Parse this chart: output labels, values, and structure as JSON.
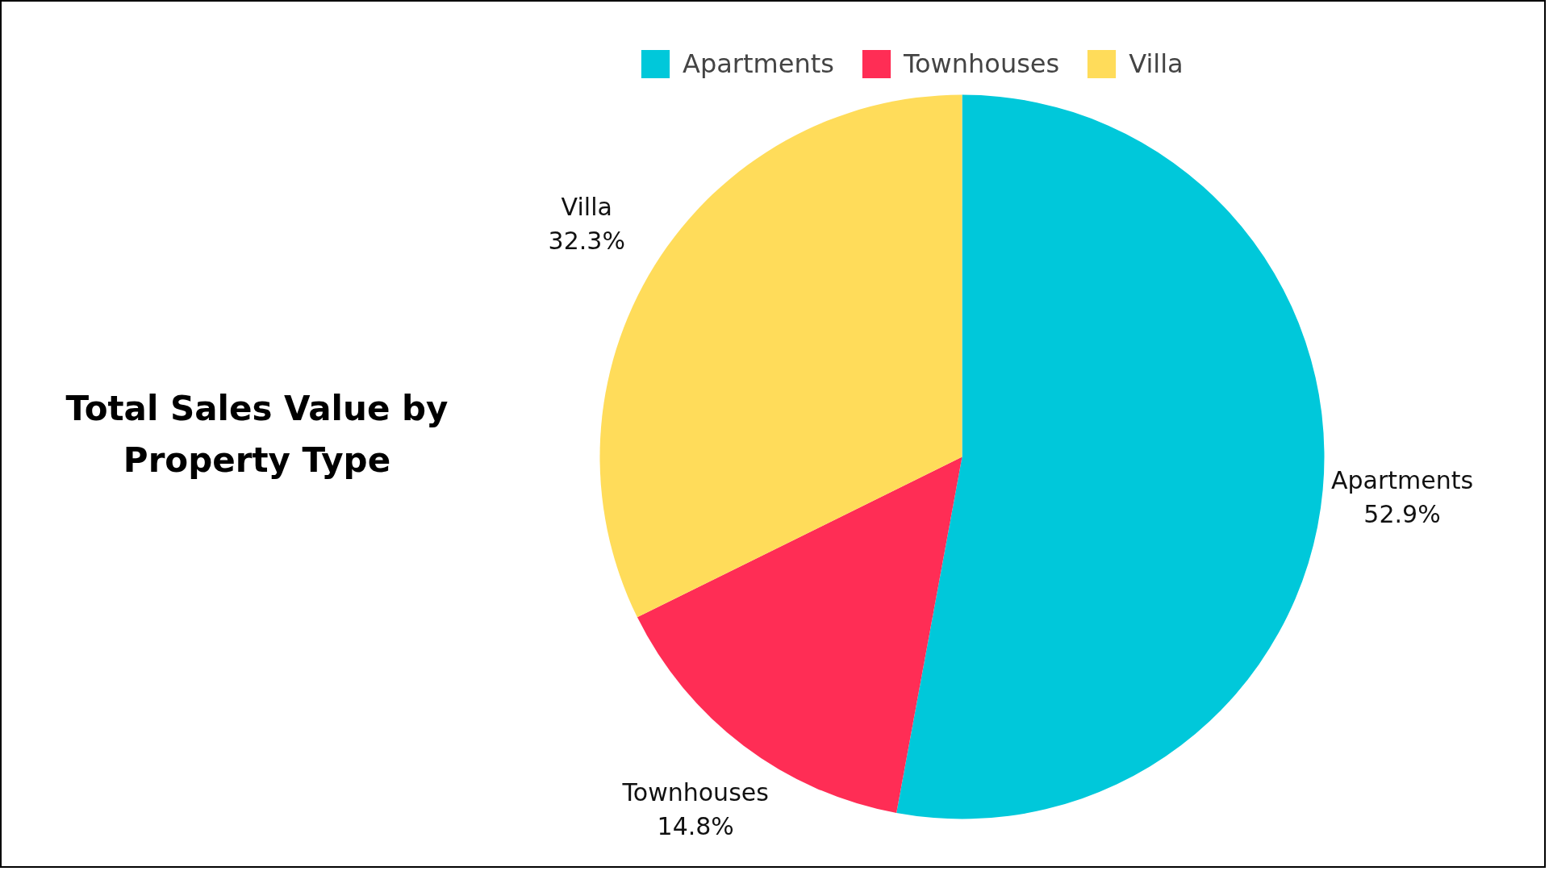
{
  "chart_data": {
    "type": "pie",
    "title": "Total Sales Value by Property Type",
    "categories": [
      "Apartments",
      "Townhouses",
      "Villa"
    ],
    "values": [
      52.9,
      14.8,
      32.3
    ],
    "colors": [
      "#00c8da",
      "#ff2d55",
      "#ffdc5a"
    ],
    "value_labels": [
      "52.9%",
      "14.8%",
      "32.3%"
    ],
    "legend": "top"
  }
}
